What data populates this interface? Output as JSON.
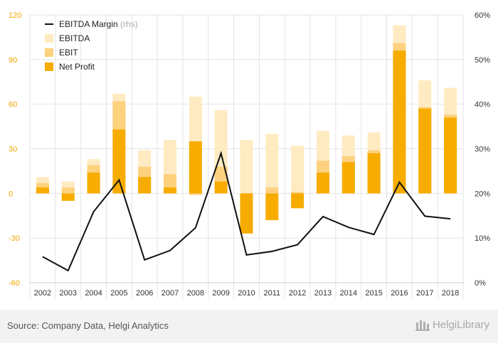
{
  "chart_data": {
    "type": "bar",
    "categories": [
      "2002",
      "2003",
      "2004",
      "2005",
      "2006",
      "2007",
      "2008",
      "2009",
      "2010",
      "2011",
      "2012",
      "2013",
      "2014",
      "2015",
      "2016",
      "2017",
      "2018"
    ],
    "series": [
      {
        "name": "EBITDA",
        "kind": "bar",
        "axis": "left",
        "color": "#ffebc2",
        "values": [
          11,
          8,
          23,
          67,
          29,
          36,
          65,
          56,
          36,
          40,
          32,
          42,
          39,
          41,
          113,
          76,
          71
        ]
      },
      {
        "name": "EBIT",
        "kind": "bar",
        "axis": "left",
        "color": "#fdd17e",
        "values": [
          7,
          4,
          19,
          62,
          18,
          13,
          -1,
          18,
          -20,
          4,
          1,
          22,
          25,
          29,
          101,
          58,
          53
        ]
      },
      {
        "name": "Net Profit",
        "kind": "bar",
        "axis": "left",
        "color": "#f7ac00",
        "values": [
          4,
          -5,
          14,
          43,
          11,
          4,
          35,
          8,
          -27,
          -18,
          -10,
          14,
          21,
          27,
          96,
          57,
          51
        ]
      },
      {
        "name": "EBITDA Margin",
        "kind": "line",
        "axis": "right",
        "color": "#111111",
        "values": [
          5.8,
          2.7,
          15.9,
          23.0,
          5.1,
          7.2,
          12.3,
          29.0,
          6.2,
          7.0,
          8.5,
          14.8,
          12.4,
          10.8,
          22.5,
          14.9,
          14.3
        ]
      }
    ],
    "legend": {
      "position": "top-left",
      "items": [
        {
          "label": "EBITDA Margin",
          "suffix": " (rhs)",
          "swatch": "line",
          "color": "#111111"
        },
        {
          "label": "EBITDA",
          "suffix": "",
          "swatch": "box",
          "color": "#ffebc2"
        },
        {
          "label": "EBIT",
          "suffix": "",
          "swatch": "box",
          "color": "#fdd17e"
        },
        {
          "label": "Net Profit",
          "suffix": "",
          "swatch": "box",
          "color": "#f7ac00"
        }
      ]
    },
    "y_left": {
      "ticks": [
        120,
        90,
        60,
        30,
        0,
        -30,
        -60
      ],
      "ylim": [
        -60,
        120
      ],
      "color": "#f0a500"
    },
    "y_right": {
      "ticks": [
        "60%",
        "50%",
        "40%",
        "30%",
        "20%",
        "10%",
        "0%"
      ],
      "ylim": [
        0,
        60
      ]
    },
    "grid": true
  },
  "footer": {
    "source": "Source: Company Data, Helgi Analytics",
    "brand": "HelgiLibrary"
  }
}
